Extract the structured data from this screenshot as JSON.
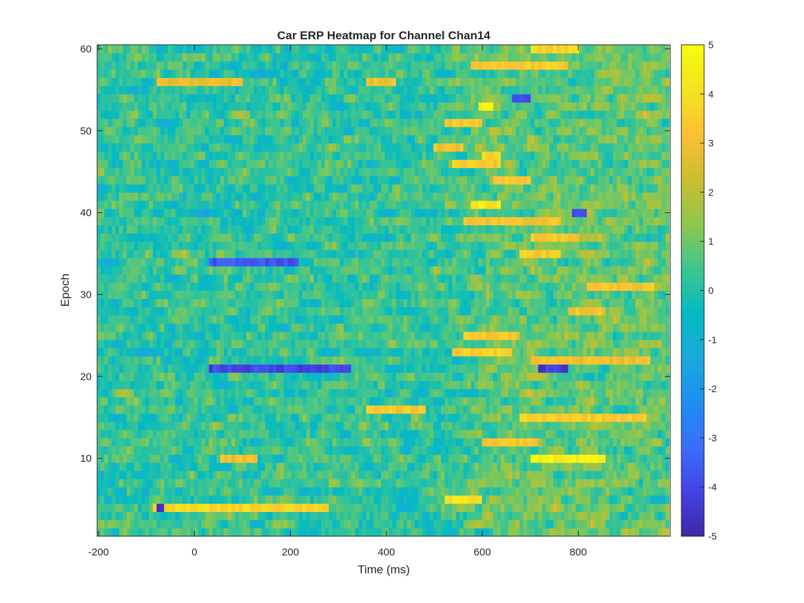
{
  "chart_data": {
    "type": "heatmap",
    "title": "Car ERP Heatmap for Channel Chan14",
    "xlabel": "Time (ms)",
    "ylabel": "Epoch",
    "xlim": [
      -203,
      992
    ],
    "ylim": [
      0.5,
      60.5
    ],
    "xticks": [
      -200,
      0,
      200,
      400,
      600,
      800
    ],
    "xtick_labels": [
      "-200",
      "0",
      "200",
      "400",
      "600",
      "800"
    ],
    "yticks": [
      10,
      20,
      30,
      40,
      50,
      60
    ],
    "ytick_labels": [
      "10",
      "20",
      "30",
      "40",
      "50",
      "60"
    ],
    "n_epochs": 60,
    "time_start_ms": -200,
    "time_step_ms": 7.8,
    "n_time_bins": 153,
    "clim": [
      -5,
      5
    ],
    "colormap": "parula",
    "colormap_stops": [
      "#3e26a8",
      "#4443e5",
      "#3a6efc",
      "#1d8ff0",
      "#1aa9dc",
      "#05bac2",
      "#3fc58f",
      "#8fc74d",
      "#cdbd2f",
      "#fcc034",
      "#f4e220",
      "#f9fb0e"
    ],
    "colorbar_ticks": [
      5,
      4,
      3,
      2,
      1,
      0,
      -1,
      -2,
      -3,
      -4,
      -5
    ],
    "colorbar_tick_labels": [
      "5",
      "4",
      "3",
      "2",
      "1",
      "0",
      "-1",
      "-2",
      "-3",
      "-4",
      "-5"
    ],
    "grid": false,
    "features": [
      {
        "epoch": 4,
        "t_from": -90,
        "t_to": 280,
        "value": 3.8
      },
      {
        "epoch": 4,
        "t_from": -80,
        "t_to": -60,
        "value": -4.6
      },
      {
        "epoch": 5,
        "t_from": 520,
        "t_to": 600,
        "value": 4.0
      },
      {
        "epoch": 10,
        "t_from": 700,
        "t_to": 860,
        "value": 4.6
      },
      {
        "epoch": 10,
        "t_from": 50,
        "t_to": 130,
        "value": 3.0
      },
      {
        "epoch": 12,
        "t_from": 600,
        "t_to": 720,
        "value": 3.3
      },
      {
        "epoch": 15,
        "t_from": 680,
        "t_to": 940,
        "value": 3.5
      },
      {
        "epoch": 16,
        "t_from": 360,
        "t_to": 480,
        "value": 3.3
      },
      {
        "epoch": 21,
        "t_from": 30,
        "t_to": 330,
        "value": -4.0
      },
      {
        "epoch": 21,
        "t_from": 720,
        "t_to": 780,
        "value": -4.3
      },
      {
        "epoch": 22,
        "t_from": 700,
        "t_to": 950,
        "value": 3.0
      },
      {
        "epoch": 23,
        "t_from": 540,
        "t_to": 660,
        "value": 3.6
      },
      {
        "epoch": 25,
        "t_from": 560,
        "t_to": 680,
        "value": 3.3
      },
      {
        "epoch": 28,
        "t_from": 780,
        "t_to": 860,
        "value": 3.2
      },
      {
        "epoch": 31,
        "t_from": 820,
        "t_to": 960,
        "value": 3.3
      },
      {
        "epoch": 34,
        "t_from": 30,
        "t_to": 220,
        "value": -3.6
      },
      {
        "epoch": 35,
        "t_from": 680,
        "t_to": 760,
        "value": 3.4
      },
      {
        "epoch": 37,
        "t_from": 700,
        "t_to": 800,
        "value": 3.4
      },
      {
        "epoch": 39,
        "t_from": 560,
        "t_to": 760,
        "value": 3.2
      },
      {
        "epoch": 40,
        "t_from": 790,
        "t_to": 820,
        "value": -3.8
      },
      {
        "epoch": 41,
        "t_from": 580,
        "t_to": 640,
        "value": 4.3
      },
      {
        "epoch": 44,
        "t_from": 620,
        "t_to": 700,
        "value": 3.6
      },
      {
        "epoch": 46,
        "t_from": 540,
        "t_to": 640,
        "value": 3.4
      },
      {
        "epoch": 47,
        "t_from": 600,
        "t_to": 640,
        "value": 3.6
      },
      {
        "epoch": 48,
        "t_from": 500,
        "t_to": 560,
        "value": 3.1
      },
      {
        "epoch": 51,
        "t_from": 520,
        "t_to": 600,
        "value": 3.3
      },
      {
        "epoch": 53,
        "t_from": 590,
        "t_to": 620,
        "value": 4.6
      },
      {
        "epoch": 54,
        "t_from": 660,
        "t_to": 700,
        "value": -4.0
      },
      {
        "epoch": 56,
        "t_from": -80,
        "t_to": 100,
        "value": 2.8
      },
      {
        "epoch": 56,
        "t_from": 360,
        "t_to": 420,
        "value": 3.0
      },
      {
        "epoch": 58,
        "t_from": 580,
        "t_to": 780,
        "value": 3.4
      },
      {
        "epoch": 60,
        "t_from": 700,
        "t_to": 800,
        "value": 3.8
      }
    ]
  }
}
